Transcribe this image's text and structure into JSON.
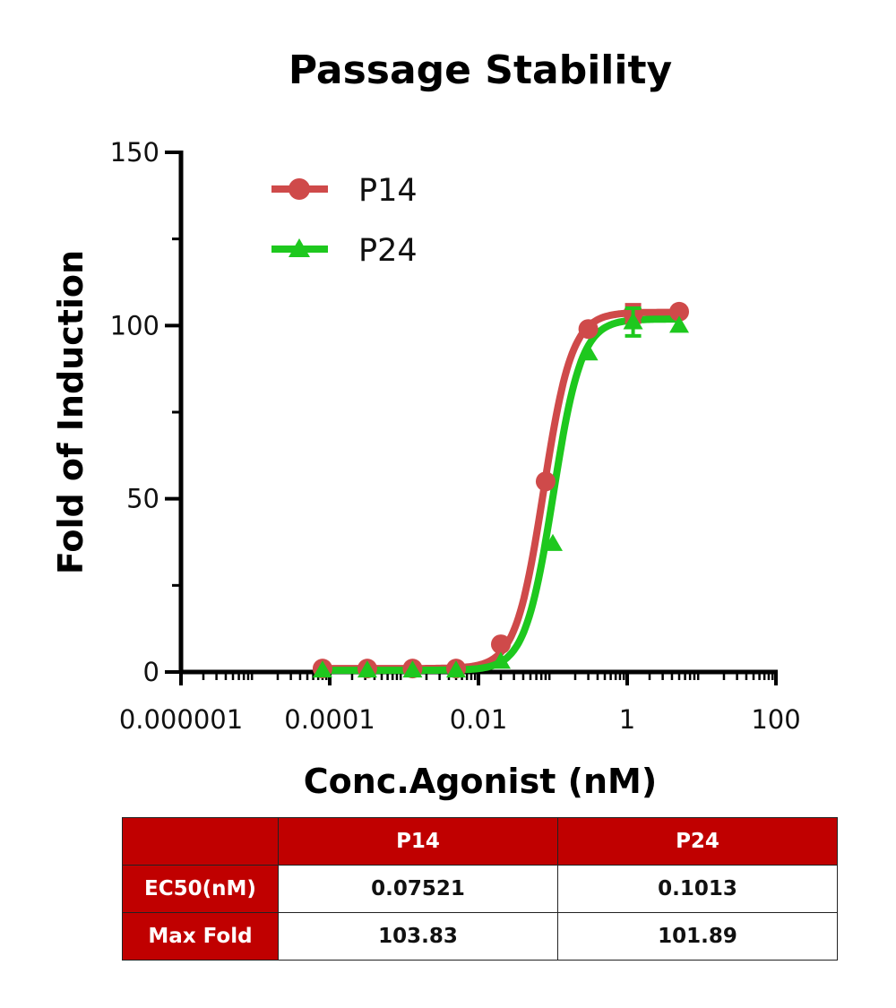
{
  "colors": {
    "P14": "#cf4a4a",
    "P24": "#1ec81e",
    "header_bg": "#c00000"
  },
  "chart_data": {
    "type": "line",
    "title": "Passage Stability",
    "xlabel": "Conc.Agonist (nM)",
    "ylabel": "Fold of Induction",
    "xscale": "log",
    "xlim": [
      1e-06,
      100
    ],
    "ylim": [
      0,
      150
    ],
    "x_ticks": [
      1e-06,
      0.0001,
      0.01,
      1,
      100
    ],
    "x_tick_labels": [
      "0.000001",
      "0.0001",
      "0.01",
      "1",
      "100"
    ],
    "y_ticks": [
      0,
      50,
      100,
      150
    ],
    "y_tick_labels": [
      "0",
      "50",
      "100",
      "150"
    ],
    "legend_position": "top-left",
    "series": [
      {
        "name": "P14",
        "marker": "circle",
        "x": [
          8e-05,
          0.00032,
          0.0013,
          0.005,
          0.02,
          0.08,
          0.3,
          1.2,
          5
        ],
        "y": [
          1,
          1,
          1,
          1,
          8,
          55,
          99,
          103.5,
          104
        ],
        "error": [
          0,
          0,
          0,
          0,
          0,
          0,
          0,
          2.5,
          0
        ],
        "fit": {
          "bottom": 1,
          "top": 103.83,
          "ec50": 0.07521,
          "hill": 2.3
        }
      },
      {
        "name": "P24",
        "marker": "triangle",
        "x": [
          8e-05,
          0.00032,
          0.0013,
          0.005,
          0.02,
          0.1,
          0.3,
          1.2,
          5
        ],
        "y": [
          0.5,
          0.5,
          0.5,
          0.5,
          3,
          37,
          92,
          101,
          100
        ],
        "error": [
          0,
          0,
          0,
          0,
          0,
          0,
          0,
          4,
          0
        ],
        "fit": {
          "bottom": 0.5,
          "top": 101.89,
          "ec50": 0.1013,
          "hill": 2.3
        }
      }
    ]
  },
  "table": {
    "corner": "",
    "columns": [
      "P14",
      "P24"
    ],
    "rows": [
      {
        "label": "EC50(nM)",
        "values": [
          "0.07521",
          "0.1013"
        ]
      },
      {
        "label": "Max Fold",
        "values": [
          "103.83",
          "101.89"
        ]
      }
    ]
  }
}
